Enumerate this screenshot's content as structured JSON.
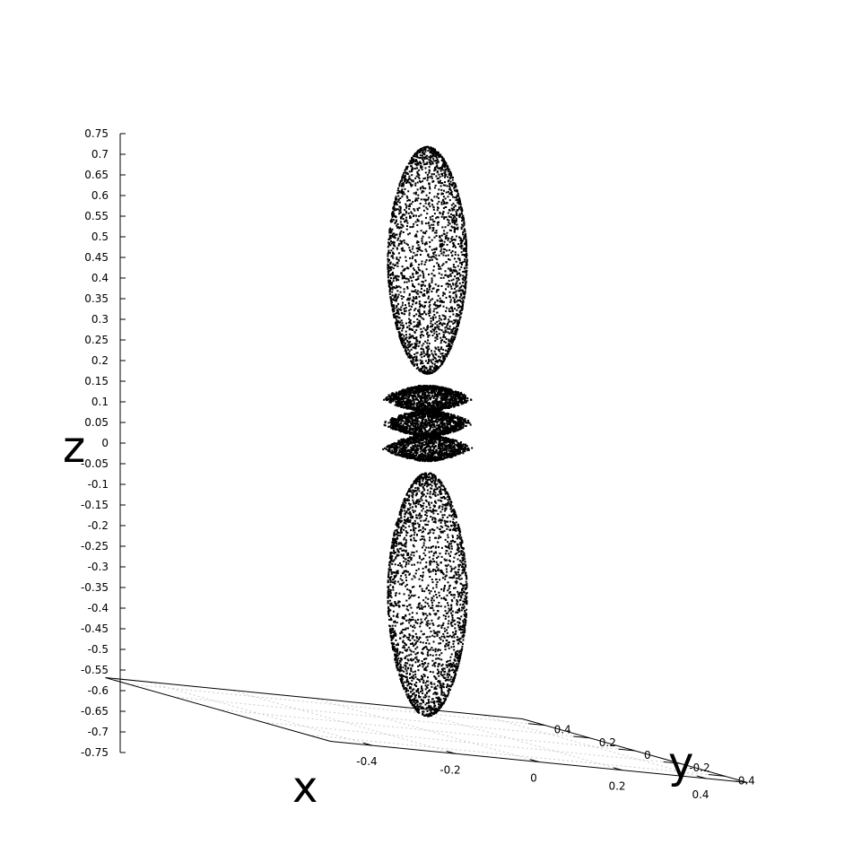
{
  "chart_data": {
    "type": "scatter",
    "title": "",
    "xlabel": "x",
    "ylabel": "y",
    "zlabel": "z",
    "xlim": [
      -0.5,
      0.5
    ],
    "ylim": [
      -0.5,
      0.5
    ],
    "zlim": [
      -0.75,
      0.75
    ],
    "x_ticks": [
      "-0.4",
      "-0.2",
      "0",
      "0.2",
      "0.4"
    ],
    "y_ticks": [
      "-0.4",
      "-0.2",
      "0",
      "0.2",
      "0.4"
    ],
    "z_ticks": [
      "0.75",
      "0.7",
      "0.65",
      "0.6",
      "0.55",
      "0.5",
      "0.45",
      "0.4",
      "0.35",
      "0.3",
      "0.25",
      "0.2",
      "0.15",
      "0.1",
      "0.05",
      "0",
      "-0.05",
      "-0.1",
      "-0.15",
      "-0.2",
      "-0.25",
      "-0.3",
      "-0.35",
      "-0.4",
      "-0.45",
      "-0.5",
      "-0.55",
      "-0.6",
      "-0.65",
      "-0.7",
      "-0.75"
    ],
    "grid": true,
    "point_color": "#000000",
    "grid_color": "#cccccc",
    "series": [
      {
        "surface": "two-lobe-with-torus",
        "point_count": 9000,
        "lobes_z_extent": [
          -0.66,
          0.72
        ],
        "lobe_max_radius": 0.095,
        "torus_z_extent": [
          -0.05,
          0.15
        ],
        "torus_max_radius": 0.11
      }
    ]
  }
}
